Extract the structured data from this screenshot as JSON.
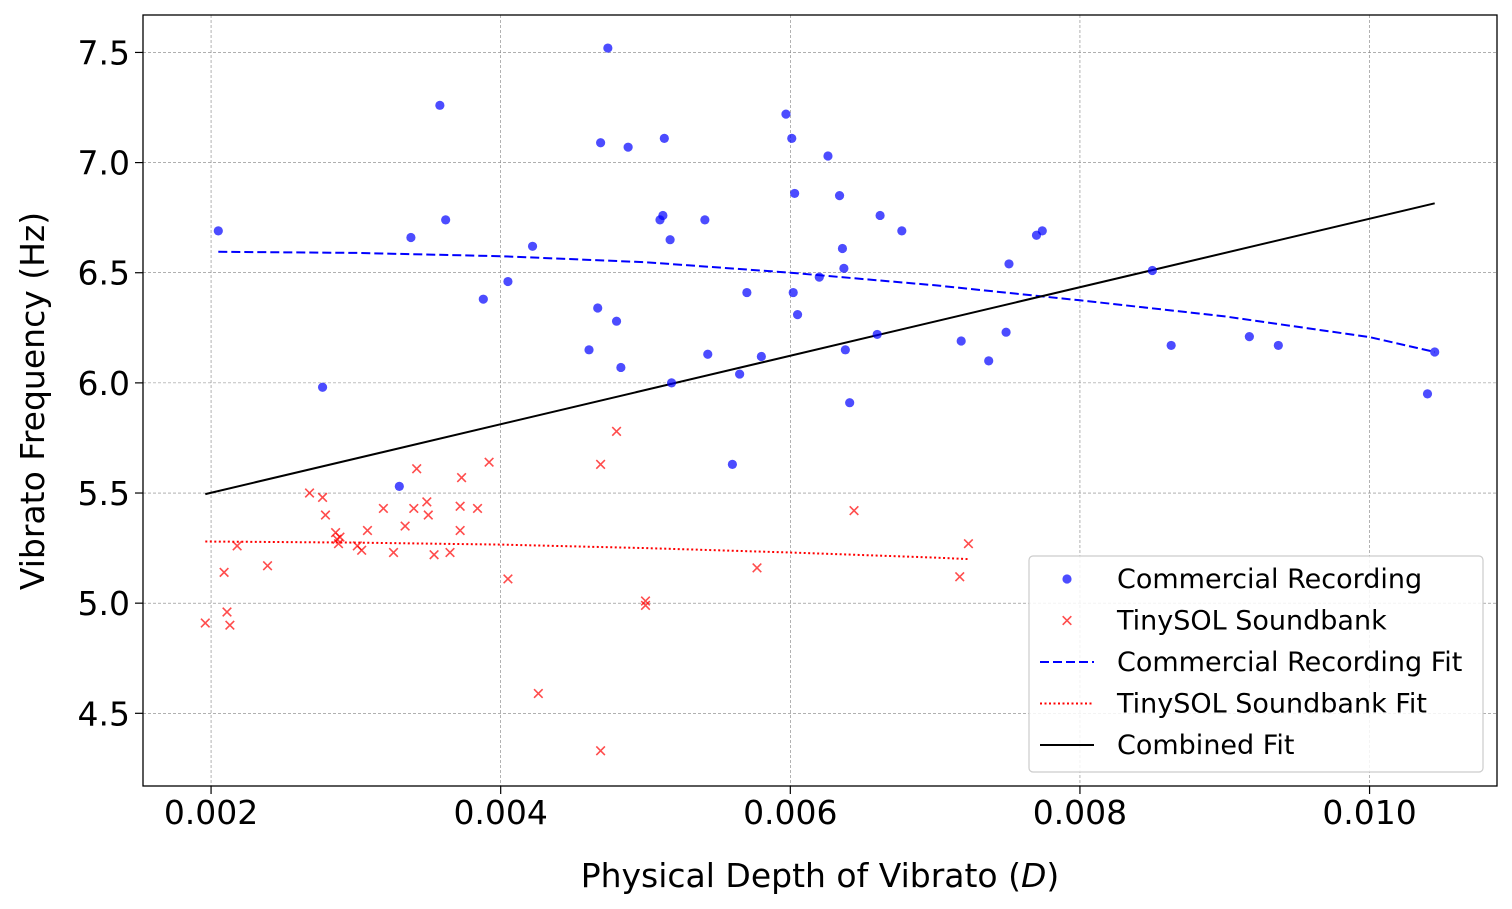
{
  "chart_data": {
    "type": "scatter",
    "title": "",
    "xlabel_prefix": "Physical Depth of Vibrato (",
    "xlabel_symbol": "D",
    "xlabel_suffix": ")",
    "ylabel": "Vibrato Frequency (Hz)",
    "xlim": [
      0.00153,
      0.01088
    ],
    "ylim": [
      4.17,
      7.67
    ],
    "xticks": [
      0.002,
      0.004,
      0.006,
      0.008,
      0.01
    ],
    "xtick_labels": [
      "0.002",
      "0.004",
      "0.006",
      "0.008",
      "0.010"
    ],
    "yticks": [
      4.5,
      5.0,
      5.5,
      6.0,
      6.5,
      7.0,
      7.5
    ],
    "ytick_labels": [
      "4.5",
      "5.0",
      "5.5",
      "6.0",
      "6.5",
      "7.0",
      "7.5"
    ],
    "grid": true,
    "legend_position": "lower-right",
    "colors": {
      "commercial": "#0000ff",
      "tinysol": "#ff0000",
      "combined": "#000000",
      "grid": "#808080"
    },
    "legend": [
      {
        "label": "Commercial Recording",
        "kind": "marker-circle",
        "color": "#0000ff"
      },
      {
        "label": "TinySOL Soundbank",
        "kind": "marker-x",
        "color": "#ff0000"
      },
      {
        "label": "Commercial Recording Fit",
        "kind": "line-dashed",
        "color": "#0000ff"
      },
      {
        "label": "TinySOL Soundbank Fit",
        "kind": "line-dotted",
        "color": "#ff0000"
      },
      {
        "label": "Combined Fit",
        "kind": "line-solid",
        "color": "#000000"
      }
    ],
    "series": [
      {
        "name": "Commercial Recording",
        "marker": "circle",
        "color": "#0000ff",
        "points": [
          [
            0.00205,
            6.69
          ],
          [
            0.00277,
            5.98
          ],
          [
            0.0033,
            5.53
          ],
          [
            0.00338,
            6.66
          ],
          [
            0.00358,
            7.26
          ],
          [
            0.00362,
            6.74
          ],
          [
            0.00388,
            6.38
          ],
          [
            0.00405,
            6.46
          ],
          [
            0.00422,
            6.62
          ],
          [
            0.00461,
            6.15
          ],
          [
            0.00467,
            6.34
          ],
          [
            0.00469,
            7.09
          ],
          [
            0.00474,
            7.52
          ],
          [
            0.0048,
            6.28
          ],
          [
            0.00483,
            6.07
          ],
          [
            0.00488,
            7.07
          ],
          [
            0.0051,
            6.74
          ],
          [
            0.00512,
            6.76
          ],
          [
            0.00513,
            7.11
          ],
          [
            0.00517,
            6.65
          ],
          [
            0.00518,
            6.0
          ],
          [
            0.00541,
            6.74
          ],
          [
            0.00543,
            6.13
          ],
          [
            0.0056,
            5.63
          ],
          [
            0.00565,
            6.04
          ],
          [
            0.0057,
            6.41
          ],
          [
            0.0058,
            6.12
          ],
          [
            0.00597,
            7.22
          ],
          [
            0.00601,
            7.11
          ],
          [
            0.00602,
            6.41
          ],
          [
            0.00603,
            6.86
          ],
          [
            0.00605,
            6.31
          ],
          [
            0.0062,
            6.48
          ],
          [
            0.00626,
            7.03
          ],
          [
            0.00634,
            6.85
          ],
          [
            0.00636,
            6.61
          ],
          [
            0.00637,
            6.52
          ],
          [
            0.00638,
            6.15
          ],
          [
            0.00641,
            5.91
          ],
          [
            0.0066,
            6.22
          ],
          [
            0.00662,
            6.76
          ],
          [
            0.00677,
            6.69
          ],
          [
            0.00718,
            6.19
          ],
          [
            0.00737,
            6.1
          ],
          [
            0.00749,
            6.23
          ],
          [
            0.00751,
            6.54
          ],
          [
            0.0077,
            6.67
          ],
          [
            0.00774,
            6.69
          ],
          [
            0.0085,
            6.51
          ],
          [
            0.00863,
            6.17
          ],
          [
            0.00917,
            6.21
          ],
          [
            0.00937,
            6.17
          ],
          [
            0.0104,
            5.95
          ],
          [
            0.01045,
            6.14
          ]
        ]
      },
      {
        "name": "TinySOL Soundbank",
        "marker": "x",
        "color": "#ff0000",
        "points": [
          [
            0.00196,
            4.91
          ],
          [
            0.00209,
            5.14
          ],
          [
            0.00211,
            4.96
          ],
          [
            0.00213,
            4.9
          ],
          [
            0.00218,
            5.26
          ],
          [
            0.00239,
            5.17
          ],
          [
            0.00268,
            5.5
          ],
          [
            0.00277,
            5.48
          ],
          [
            0.00279,
            5.4
          ],
          [
            0.00286,
            5.32
          ],
          [
            0.00287,
            5.29
          ],
          [
            0.00288,
            5.27
          ],
          [
            0.00289,
            5.3
          ],
          [
            0.00301,
            5.26
          ],
          [
            0.00304,
            5.24
          ],
          [
            0.00308,
            5.33
          ],
          [
            0.00319,
            5.43
          ],
          [
            0.00326,
            5.23
          ],
          [
            0.00334,
            5.35
          ],
          [
            0.0034,
            5.43
          ],
          [
            0.00342,
            5.61
          ],
          [
            0.00349,
            5.46
          ],
          [
            0.0035,
            5.4
          ],
          [
            0.00354,
            5.22
          ],
          [
            0.00365,
            5.23
          ],
          [
            0.00372,
            5.33
          ],
          [
            0.00372,
            5.44
          ],
          [
            0.00373,
            5.57
          ],
          [
            0.00384,
            5.43
          ],
          [
            0.00392,
            5.64
          ],
          [
            0.00405,
            5.11
          ],
          [
            0.00426,
            4.59
          ],
          [
            0.00469,
            4.33
          ],
          [
            0.00469,
            5.63
          ],
          [
            0.0048,
            5.78
          ],
          [
            0.005,
            4.99
          ],
          [
            0.005,
            5.01
          ],
          [
            0.00577,
            5.16
          ],
          [
            0.00644,
            5.42
          ],
          [
            0.00717,
            5.12
          ],
          [
            0.00723,
            5.27
          ]
        ]
      }
    ],
    "fit_lines": [
      {
        "name": "Commercial Recording Fit",
        "style": "dashed",
        "color": "#0000ff",
        "points": [
          [
            0.00205,
            6.595
          ],
          [
            0.003,
            6.59
          ],
          [
            0.004,
            6.575
          ],
          [
            0.005,
            6.548
          ],
          [
            0.006,
            6.5
          ],
          [
            0.007,
            6.443
          ],
          [
            0.008,
            6.375
          ],
          [
            0.009,
            6.302
          ],
          [
            0.01,
            6.208
          ],
          [
            0.01045,
            6.14
          ]
        ]
      },
      {
        "name": "TinySOL Soundbank Fit",
        "style": "dotted",
        "color": "#ff0000",
        "points": [
          [
            0.00196,
            5.28
          ],
          [
            0.003,
            5.275
          ],
          [
            0.004,
            5.266
          ],
          [
            0.005,
            5.25
          ],
          [
            0.006,
            5.23
          ],
          [
            0.007,
            5.207
          ],
          [
            0.00723,
            5.2
          ]
        ]
      },
      {
        "name": "Combined Fit",
        "style": "solid",
        "color": "#000000",
        "points": [
          [
            0.00196,
            5.495
          ],
          [
            0.01045,
            6.815
          ]
        ]
      }
    ]
  }
}
